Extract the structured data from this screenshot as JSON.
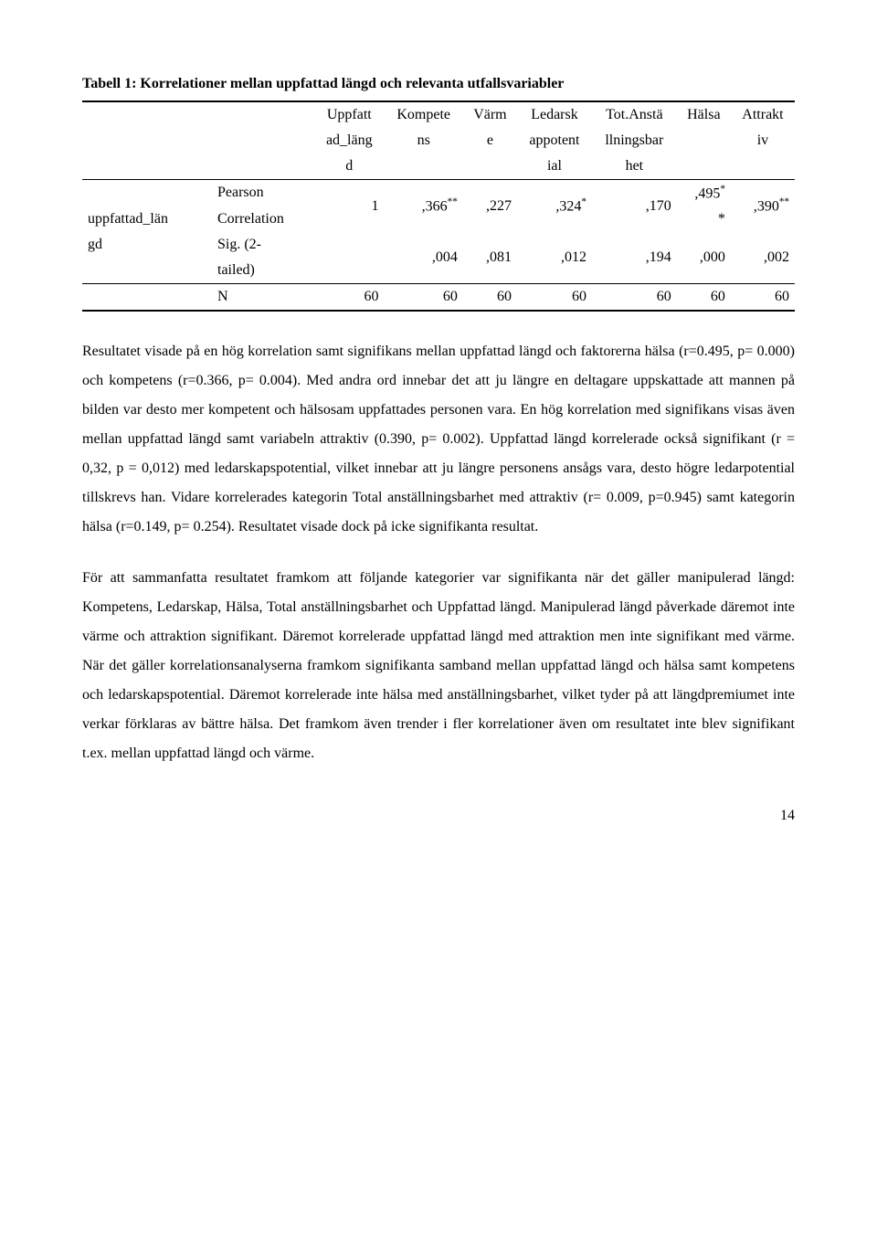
{
  "table": {
    "title": "Tabell 1: Korrelationer mellan uppfattad längd och relevanta utfallsvariabler",
    "headers": {
      "c1": {
        "l1": "Uppfatt",
        "l2": "ad_läng",
        "l3": "d"
      },
      "c2": {
        "l1": "Kompete",
        "l2": "ns",
        "l3": ""
      },
      "c3": {
        "l1": "Värm",
        "l2": "e",
        "l3": ""
      },
      "c4": {
        "l1": "Ledarsk",
        "l2": "appotent",
        "l3": "ial"
      },
      "c5": {
        "l1": "Tot.Anstä",
        "l2": "llningsbar",
        "l3": "het"
      },
      "c6": {
        "l1": "Hälsa",
        "l2": "",
        "l3": ""
      },
      "c7": {
        "l1": "Attrakt",
        "l2": "iv",
        "l3": ""
      }
    },
    "rowgroup_label_l1": "uppfattad_län",
    "rowgroup_label_l2": "gd",
    "rows": {
      "pearson": {
        "label_l1": "Pearson",
        "label_l2": "Correlation",
        "v1": "1",
        "v2": ",366",
        "v2sup": "**",
        "v3": ",227",
        "v4": ",324",
        "v4sup": "*",
        "v5": ",170",
        "v6top": ",495",
        "v6topsup": "*",
        "v6bot": "*",
        "v7": ",390",
        "v7sup": "**"
      },
      "sig": {
        "label_l1": "Sig. (2-",
        "label_l2": "tailed)",
        "v1": "",
        "v2": ",004",
        "v3": ",081",
        "v4": ",012",
        "v5": ",194",
        "v6": ",000",
        "v7": ",002"
      },
      "n": {
        "label": "N",
        "v1": "60",
        "v2": "60",
        "v3": "60",
        "v4": "60",
        "v5": "60",
        "v6": "60",
        "v7": "60"
      }
    }
  },
  "para1": "Resultatet visade på en hög korrelation samt signifikans mellan uppfattad längd och faktorerna hälsa (r=0.495, p= 0.000) och kompetens (r=0.366, p= 0.004). Med andra ord innebar det att ju längre en deltagare uppskattade att mannen på bilden var desto mer kompetent och hälsosam uppfattades personen vara. En hög korrelation med signifikans visas även mellan uppfattad längd samt variabeln attraktiv (0.390, p= 0.002). Uppfattad längd korrelerade också signifikant (r = 0,32, p = 0,012) med ledarskapspotential, vilket innebar att ju längre personens ansågs vara, desto högre ledarpotential tillskrevs han. Vidare korrelerades kategorin Total anställningsbarhet med attraktiv (r= 0.009, p=0.945) samt kategorin hälsa (r=0.149, p= 0.254). Resultatet visade dock på icke signifikanta resultat.",
  "para2": "För att sammanfatta resultatet framkom att följande kategorier var signifikanta när det gäller manipulerad längd: Kompetens, Ledarskap, Hälsa, Total anställningsbarhet och Uppfattad längd. Manipulerad längd påverkade däremot inte värme och attraktion signifikant. Däremot korrelerade uppfattad längd med attraktion men inte signifikant med värme. När det gäller korrelationsanalyserna framkom signifikanta samband mellan uppfattad längd och hälsa samt kompetens och ledarskapspotential. Däremot korrelerade inte hälsa med anställningsbarhet, vilket tyder på att längdpremiumet inte verkar förklaras av bättre hälsa. Det framkom även trender i fler korrelationer även om resultatet inte blev signifikant t.ex. mellan uppfattad längd och värme.",
  "pagenum": "14"
}
